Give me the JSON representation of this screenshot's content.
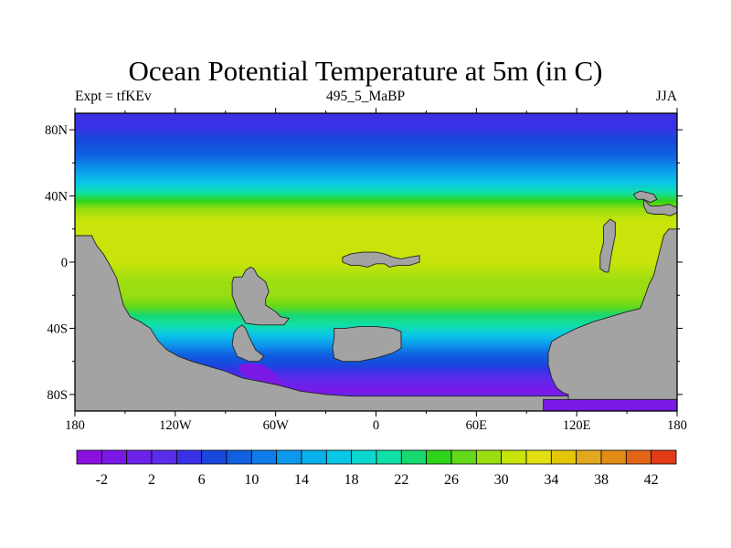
{
  "chart_data": {
    "type": "heatmap",
    "title": "Ocean Potential Temperature at 5m (in C)",
    "subtitle_left": "Expt = tfKEv",
    "subtitle_center": "495_5_MaBP",
    "subtitle_right": "JJA",
    "xlim": [
      -180,
      180
    ],
    "ylim": [
      -90,
      90
    ],
    "x_ticks": [
      {
        "value": -180,
        "label": "180"
      },
      {
        "value": -120,
        "label": "120W"
      },
      {
        "value": -60,
        "label": "60W"
      },
      {
        "value": 0,
        "label": "0"
      },
      {
        "value": 60,
        "label": "60E"
      },
      {
        "value": 120,
        "label": "120E"
      },
      {
        "value": 180,
        "label": "180"
      }
    ],
    "y_ticks": [
      {
        "value": 80,
        "label": "80N"
      },
      {
        "value": 40,
        "label": "40N"
      },
      {
        "value": 0,
        "label": "0"
      },
      {
        "value": -40,
        "label": "40S"
      },
      {
        "value": -80,
        "label": "80S"
      }
    ],
    "colorbar": {
      "min": -4,
      "max": 44,
      "step": 2,
      "labels": [
        {
          "value": -2,
          "label": "-2"
        },
        {
          "value": 2,
          "label": "2"
        },
        {
          "value": 6,
          "label": "6"
        },
        {
          "value": 10,
          "label": "10"
        },
        {
          "value": 14,
          "label": "14"
        },
        {
          "value": 18,
          "label": "18"
        },
        {
          "value": 22,
          "label": "22"
        },
        {
          "value": 26,
          "label": "26"
        },
        {
          "value": 30,
          "label": "30"
        },
        {
          "value": 34,
          "label": "34"
        },
        {
          "value": 38,
          "label": "38"
        },
        {
          "value": 42,
          "label": "42"
        }
      ],
      "colors": [
        "#8a10e0",
        "#7a18e6",
        "#6a22ea",
        "#5c2cec",
        "#3a30e6",
        "#1848dc",
        "#1060e0",
        "#107ce8",
        "#0c98ec",
        "#08b0ec",
        "#0ac6e6",
        "#0ad8d0",
        "#10e0a8",
        "#18d870",
        "#2ed41a",
        "#64d81a",
        "#9ade12",
        "#c8e40a",
        "#e2e010",
        "#e4c608",
        "#e2a81e",
        "#e28c16",
        "#e26414",
        "#e23c16"
      ]
    },
    "temperature_profile": [
      {
        "lat": 90,
        "temp": 4
      },
      {
        "lat": 82,
        "temp": 5
      },
      {
        "lat": 74,
        "temp": 7
      },
      {
        "lat": 65,
        "temp": 9
      },
      {
        "lat": 56,
        "temp": 13
      },
      {
        "lat": 48,
        "temp": 17
      },
      {
        "lat": 42,
        "temp": 21
      },
      {
        "lat": 37,
        "temp": 25
      },
      {
        "lat": 32,
        "temp": 28
      },
      {
        "lat": 25,
        "temp": 30
      },
      {
        "lat": 0,
        "temp": 30
      },
      {
        "lat": -12,
        "temp": 29
      },
      {
        "lat": -20,
        "temp": 28
      },
      {
        "lat": -27,
        "temp": 26
      },
      {
        "lat": -32,
        "temp": 23
      },
      {
        "lat": -38,
        "temp": 20
      },
      {
        "lat": -44,
        "temp": 16
      },
      {
        "lat": -50,
        "temp": 12
      },
      {
        "lat": -56,
        "temp": 9
      },
      {
        "lat": -62,
        "temp": 6
      },
      {
        "lat": -66,
        "temp": 4
      },
      {
        "lat": -70,
        "temp": 2
      },
      {
        "lat": -74,
        "temp": 0
      },
      {
        "lat": -78,
        "temp": -2
      },
      {
        "lat": -90,
        "temp": -2
      }
    ],
    "land_color": "#a3a3a3",
    "land_masses": [
      [
        [
          -180,
          -90
        ],
        [
          -180,
          16
        ],
        [
          -170,
          16
        ],
        [
          -167,
          10
        ],
        [
          -163,
          5
        ],
        [
          -159,
          -2
        ],
        [
          -155,
          -10
        ],
        [
          -153,
          -18
        ],
        [
          -151,
          -26
        ],
        [
          -147,
          -33
        ],
        [
          -141,
          -36
        ],
        [
          -135,
          -40
        ],
        [
          -130,
          -48
        ],
        [
          -125,
          -53
        ],
        [
          -118,
          -57
        ],
        [
          -110,
          -60
        ],
        [
          -100,
          -63
        ],
        [
          -90,
          -66
        ],
        [
          -80,
          -70
        ],
        [
          -70,
          -72
        ],
        [
          -60,
          -74
        ],
        [
          -45,
          -78
        ],
        [
          -30,
          -80
        ],
        [
          -15,
          -81
        ],
        [
          0,
          -81
        ],
        [
          20,
          -81
        ],
        [
          40,
          -81
        ],
        [
          60,
          -81
        ],
        [
          80,
          -81
        ],
        [
          94,
          -81
        ],
        [
          104,
          -81
        ],
        [
          110,
          -81
        ],
        [
          115,
          -81
        ],
        [
          115,
          -83
        ],
        [
          100,
          -83
        ],
        [
          100,
          -90
        ]
      ],
      [
        [
          180,
          -90
        ],
        [
          180,
          20
        ],
        [
          175,
          20
        ],
        [
          172,
          16
        ],
        [
          170,
          8
        ],
        [
          168,
          0
        ],
        [
          166,
          -8
        ],
        [
          163,
          -14
        ],
        [
          161,
          -20
        ],
        [
          158,
          -28
        ],
        [
          150,
          -30
        ],
        [
          140,
          -33
        ],
        [
          130,
          -36
        ],
        [
          120,
          -40
        ],
        [
          110,
          -45
        ],
        [
          105,
          -48
        ],
        [
          103,
          -55
        ],
        [
          103,
          -62
        ],
        [
          105,
          -70
        ],
        [
          108,
          -76
        ],
        [
          112,
          -79
        ],
        [
          115,
          -80
        ],
        [
          115,
          -83
        ],
        [
          180,
          -83
        ]
      ],
      [
        [
          160,
          38
        ],
        [
          164,
          34
        ],
        [
          170,
          34
        ],
        [
          175,
          35
        ],
        [
          180,
          33
        ],
        [
          180,
          30
        ],
        [
          176,
          28
        ],
        [
          172,
          29
        ],
        [
          166,
          29
        ],
        [
          162,
          30
        ],
        [
          160,
          34
        ]
      ],
      [
        [
          -85,
          -9
        ],
        [
          -80,
          -9
        ],
        [
          -78,
          -5
        ],
        [
          -75,
          -3
        ],
        [
          -73,
          -4
        ],
        [
          -71,
          -8
        ],
        [
          -66,
          -12
        ],
        [
          -64,
          -18
        ],
        [
          -66,
          -22
        ],
        [
          -66,
          -26
        ],
        [
          -60,
          -30
        ],
        [
          -57,
          -33
        ],
        [
          -52,
          -34
        ],
        [
          -55,
          -38
        ],
        [
          -70,
          -38
        ],
        [
          -78,
          -37
        ],
        [
          -80,
          -33
        ],
        [
          -83,
          -28
        ],
        [
          -86,
          -20
        ],
        [
          -86,
          -12
        ]
      ],
      [
        [
          -20,
          3
        ],
        [
          -15,
          5
        ],
        [
          -8,
          6
        ],
        [
          0,
          6
        ],
        [
          5,
          5
        ],
        [
          10,
          3
        ],
        [
          15,
          2
        ],
        [
          20,
          3
        ],
        [
          26,
          4
        ],
        [
          26,
          0
        ],
        [
          20,
          -2
        ],
        [
          13,
          -2
        ],
        [
          8,
          -3
        ],
        [
          5,
          -1
        ],
        [
          0,
          -1
        ],
        [
          -5,
          -3
        ],
        [
          -10,
          -2
        ],
        [
          -15,
          -2
        ],
        [
          -20,
          0
        ]
      ],
      [
        [
          -25,
          -40
        ],
        [
          -18,
          -40
        ],
        [
          -10,
          -39
        ],
        [
          0,
          -39
        ],
        [
          10,
          -40
        ],
        [
          15,
          -42
        ],
        [
          15,
          -52
        ],
        [
          10,
          -55
        ],
        [
          0,
          -58
        ],
        [
          -10,
          -60
        ],
        [
          -20,
          -60
        ],
        [
          -25,
          -58
        ],
        [
          -26,
          -52
        ],
        [
          -25,
          -46
        ]
      ],
      [
        [
          136,
          22
        ],
        [
          140,
          26
        ],
        [
          143,
          24
        ],
        [
          143,
          16
        ],
        [
          141,
          6
        ],
        [
          139,
          -6
        ],
        [
          137,
          -6
        ],
        [
          134,
          -4
        ],
        [
          134,
          4
        ],
        [
          136,
          12
        ]
      ],
      [
        [
          154,
          41
        ],
        [
          158,
          43
        ],
        [
          166,
          41
        ],
        [
          168,
          38
        ],
        [
          164,
          36
        ],
        [
          160,
          38
        ],
        [
          156,
          38
        ]
      ],
      [
        [
          -85,
          -43
        ],
        [
          -83,
          -40
        ],
        [
          -80,
          -38
        ],
        [
          -78,
          -40
        ],
        [
          -75,
          -47
        ],
        [
          -72,
          -53
        ],
        [
          -67,
          -57
        ],
        [
          -70,
          -60
        ],
        [
          -76,
          -60
        ],
        [
          -83,
          -57
        ],
        [
          -86,
          -50
        ]
      ]
    ],
    "cold_patches": [
      {
        "temp": -2,
        "poly": [
          [
            -82,
            -62
          ],
          [
            -76,
            -61
          ],
          [
            -68,
            -62
          ],
          [
            -62,
            -66
          ],
          [
            -58,
            -70
          ],
          [
            -55,
            -74
          ],
          [
            -60,
            -74
          ],
          [
            -68,
            -72
          ],
          [
            -72,
            -71
          ],
          [
            -77,
            -69
          ],
          [
            -82,
            -66
          ]
        ]
      },
      {
        "temp": 0,
        "poly": [
          [
            -30,
            -79
          ],
          [
            0,
            -79
          ],
          [
            40,
            -79
          ],
          [
            80,
            -79
          ],
          [
            100,
            -79
          ],
          [
            112,
            -79
          ],
          [
            112,
            -81
          ],
          [
            100,
            -81
          ],
          [
            60,
            -81
          ],
          [
            20,
            -81
          ],
          [
            -30,
            -81
          ]
        ]
      },
      {
        "temp": -2,
        "poly": [
          [
            100,
            -78
          ],
          [
            108,
            -77
          ],
          [
            112,
            -79
          ],
          [
            104,
            -80
          ],
          [
            98,
            -80
          ]
        ]
      }
    ]
  }
}
